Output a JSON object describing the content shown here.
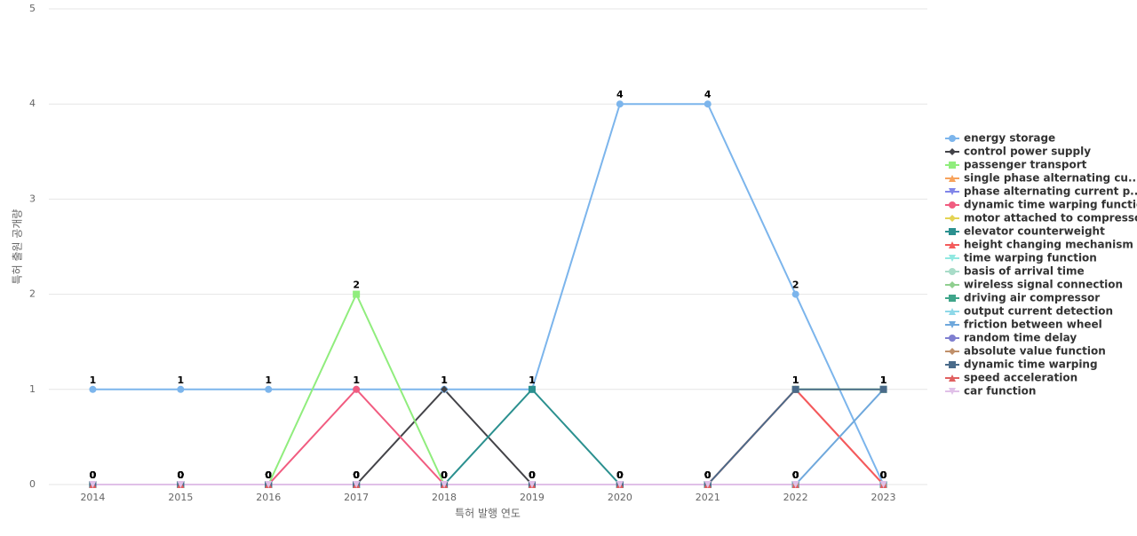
{
  "chart_data": {
    "type": "line",
    "x_label": "특허 발행 연도",
    "y_label": "특허 출원 공개량",
    "categories": [
      "2014",
      "2015",
      "2016",
      "2017",
      "2018",
      "2019",
      "2020",
      "2021",
      "2022",
      "2023"
    ],
    "ylim": [
      0,
      5
    ],
    "yticks": [
      0,
      1,
      2,
      3,
      4,
      5
    ],
    "grid": true,
    "legend": "right",
    "series": [
      {
        "name": "energy storage",
        "color": "#7cb5ec",
        "marker": "circle",
        "values": [
          1,
          1,
          1,
          1,
          1,
          1,
          4,
          4,
          2,
          0
        ]
      },
      {
        "name": "control power supply",
        "color": "#434348",
        "marker": "diamond",
        "values": [
          0,
          0,
          0,
          0,
          1,
          0,
          0,
          0,
          0,
          0
        ]
      },
      {
        "name": "passenger transport",
        "color": "#90ed7d",
        "marker": "square",
        "values": [
          0,
          0,
          0,
          2,
          0,
          0,
          0,
          0,
          1,
          1
        ]
      },
      {
        "name": "single phase alternating cu...",
        "color": "#f7a35c",
        "marker": "triangle",
        "values": [
          0,
          0,
          0,
          0,
          0,
          0,
          0,
          0,
          0,
          0
        ]
      },
      {
        "name": "phase alternating current p...",
        "color": "#8085e9",
        "marker": "triangle-down",
        "values": [
          0,
          0,
          0,
          0,
          0,
          0,
          0,
          0,
          0,
          0
        ]
      },
      {
        "name": "dynamic time warping function",
        "color": "#f15c80",
        "marker": "circle",
        "values": [
          0,
          0,
          0,
          1,
          0,
          0,
          0,
          0,
          1,
          0
        ]
      },
      {
        "name": "motor attached to compressor",
        "color": "#e4d354",
        "marker": "diamond",
        "values": [
          0,
          0,
          0,
          0,
          0,
          0,
          0,
          0,
          0,
          0
        ]
      },
      {
        "name": "elevator counterweight",
        "color": "#2b908f",
        "marker": "square",
        "values": [
          0,
          0,
          0,
          0,
          0,
          1,
          0,
          0,
          0,
          0
        ]
      },
      {
        "name": "height changing mechanism",
        "color": "#f45b5b",
        "marker": "triangle",
        "values": [
          0,
          0,
          0,
          0,
          0,
          0,
          0,
          0,
          1,
          0
        ]
      },
      {
        "name": "time warping function",
        "color": "#91e8e1",
        "marker": "triangle-down",
        "values": [
          0,
          0,
          0,
          0,
          0,
          0,
          0,
          0,
          0,
          0
        ]
      },
      {
        "name": "basis of arrival time",
        "color": "#a8dcc8",
        "marker": "circle",
        "values": [
          0,
          0,
          0,
          0,
          0,
          0,
          0,
          0,
          0,
          0
        ]
      },
      {
        "name": "wireless signal connection",
        "color": "#8fcf8f",
        "marker": "diamond",
        "values": [
          0,
          0,
          0,
          0,
          0,
          0,
          0,
          0,
          0,
          0
        ]
      },
      {
        "name": "driving air compressor",
        "color": "#3fa58a",
        "marker": "square",
        "values": [
          0,
          0,
          0,
          0,
          0,
          0,
          0,
          0,
          0,
          0
        ]
      },
      {
        "name": "output current detection",
        "color": "#8ed8e8",
        "marker": "triangle",
        "values": [
          0,
          0,
          0,
          0,
          0,
          0,
          0,
          0,
          0,
          0
        ]
      },
      {
        "name": "friction between wheel",
        "color": "#6fa8dc",
        "marker": "triangle-down",
        "values": [
          0,
          0,
          0,
          0,
          0,
          0,
          0,
          0,
          0,
          1
        ]
      },
      {
        "name": "random time delay",
        "color": "#7f7fd0",
        "marker": "circle",
        "values": [
          0,
          0,
          0,
          0,
          0,
          0,
          0,
          0,
          0,
          0
        ]
      },
      {
        "name": "absolute value function",
        "color": "#c0906a",
        "marker": "diamond",
        "values": [
          0,
          0,
          0,
          0,
          0,
          0,
          0,
          0,
          0,
          0
        ]
      },
      {
        "name": "dynamic time warping",
        "color": "#4a6b8a",
        "marker": "square",
        "values": [
          0,
          0,
          0,
          0,
          0,
          0,
          0,
          0,
          1,
          1
        ]
      },
      {
        "name": "speed acceleration",
        "color": "#e06060",
        "marker": "triangle",
        "values": [
          0,
          0,
          0,
          0,
          0,
          0,
          0,
          0,
          0,
          0
        ]
      },
      {
        "name": "car function",
        "color": "#e0c0e8",
        "marker": "triangle-down",
        "values": [
          0,
          0,
          0,
          0,
          0,
          0,
          0,
          0,
          0,
          0
        ]
      }
    ]
  }
}
